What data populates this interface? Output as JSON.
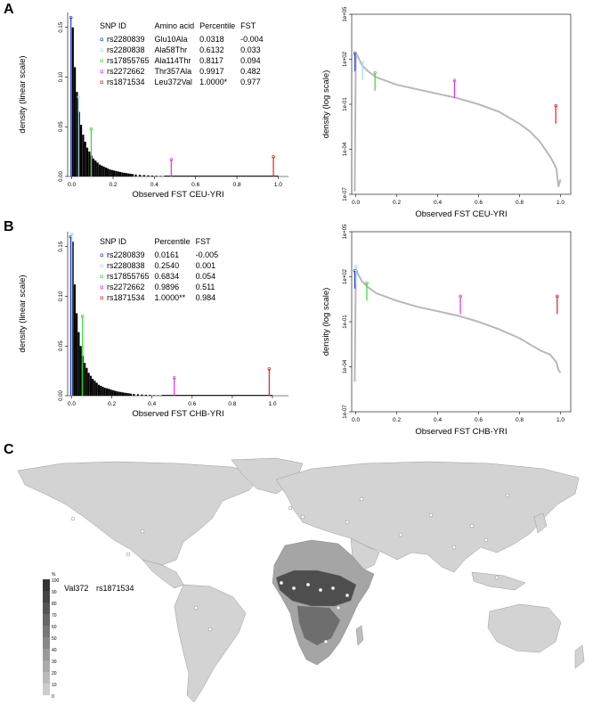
{
  "panels": {
    "a": "A",
    "b": "B",
    "c": "C"
  },
  "colors": {
    "rs2280839": "#1f3fd0",
    "rs2280838": "#a8d8f0",
    "rs17855765": "#33dd33",
    "rs2272662": "#dd33dd",
    "rs1871534": "#dd2222",
    "curve": "#b8b8b8",
    "histogram": "#000000",
    "land": "#d3d3d3"
  },
  "legend_a": {
    "headers": [
      "SNP ID",
      "Amino acid",
      "Percentile",
      "FST"
    ],
    "rows": [
      {
        "snp": "rs2280839",
        "aa": "Glu10Ala",
        "pct": "0.0318",
        "fst": "-0.004"
      },
      {
        "snp": "rs2280838",
        "aa": "Ala58Thr",
        "pct": "0.6132",
        "fst": "0.033"
      },
      {
        "snp": "rs17855765",
        "aa": "Ala114Thr",
        "pct": "0.8117",
        "fst": "0.094"
      },
      {
        "snp": "rs2272662",
        "aa": "Thr357Ala",
        "pct": "0.9917",
        "fst": "0.482"
      },
      {
        "snp": "rs1871534",
        "aa": "Leu372Val",
        "pct": "1.0000*",
        "fst": "0.977"
      }
    ]
  },
  "legend_b": {
    "headers": [
      "SNP ID",
      "Percentile",
      "FST"
    ],
    "rows": [
      {
        "snp": "rs2280839",
        "pct": "0.0161",
        "fst": "-0.005"
      },
      {
        "snp": "rs2280838",
        "pct": "0.2540",
        "fst": "0.001"
      },
      {
        "snp": "rs17855765",
        "pct": "0.6834",
        "fst": "0.054"
      },
      {
        "snp": "rs2272662",
        "pct": "0.9896",
        "fst": "0.511"
      },
      {
        "snp": "rs1871534",
        "pct": "1.0000**",
        "fst": "0.984"
      }
    ]
  },
  "chart_data": [
    {
      "id": "A-linear",
      "type": "bar",
      "xlabel": "Observed FST CEU-YRI",
      "ylabel": "density (linear scale)",
      "xticks": [
        "0.0",
        "0.2",
        "0.4",
        "0.6",
        "0.8",
        "1.0"
      ],
      "yticks": [
        "0.00",
        "0.05",
        "0.10",
        "0.15"
      ],
      "xlim": [
        -0.02,
        1.05
      ],
      "ylim": [
        0,
        0.165
      ],
      "hist_x": [
        0.005,
        0.015,
        0.025,
        0.035,
        0.045,
        0.055,
        0.065,
        0.075,
        0.085,
        0.095,
        0.105,
        0.115,
        0.125,
        0.135,
        0.145,
        0.155,
        0.165,
        0.175,
        0.185,
        0.195,
        0.205,
        0.215,
        0.225,
        0.235,
        0.245,
        0.255,
        0.265,
        0.275,
        0.285,
        0.295,
        0.31,
        0.33,
        0.35,
        0.37,
        0.39,
        0.41,
        0.43,
        0.45
      ],
      "hist_y": [
        0.15,
        0.11,
        0.085,
        0.065,
        0.052,
        0.042,
        0.035,
        0.029,
        0.025,
        0.021,
        0.018,
        0.016,
        0.014,
        0.012,
        0.011,
        0.01,
        0.009,
        0.008,
        0.007,
        0.0065,
        0.006,
        0.0055,
        0.005,
        0.0045,
        0.004,
        0.0037,
        0.0034,
        0.003,
        0.0027,
        0.0024,
        0.002,
        0.0017,
        0.0014,
        0.0011,
        0.0009,
        0.0007,
        0.0005,
        0.0004
      ],
      "snp_markers": [
        {
          "snp": "rs2280839",
          "x": -0.004,
          "y": 0.16
        },
        {
          "snp": "rs2280838",
          "x": 0.033,
          "y": 0.08
        },
        {
          "snp": "rs17855765",
          "x": 0.094,
          "y": 0.048
        },
        {
          "snp": "rs2272662",
          "x": 0.482,
          "y": 0.017
        },
        {
          "snp": "rs1871534",
          "x": 0.977,
          "y": 0.02
        }
      ]
    },
    {
      "id": "A-log",
      "type": "line",
      "xlabel": "Observed FST CEU-YRI",
      "ylabel": "density (log scale)",
      "xticks": [
        "0.0",
        "0.2",
        "0.4",
        "0.6",
        "0.8",
        "1.0"
      ],
      "yticks": [
        "1e-07",
        "1e-04",
        "1e-01",
        "1e+02",
        "1e+05"
      ],
      "xlim": [
        -0.02,
        1.05
      ],
      "ylog_range": [
        -7,
        5
      ],
      "curve_x": [
        -0.005,
        0.0,
        0.005,
        0.01,
        0.03,
        0.06,
        0.1,
        0.2,
        0.3,
        0.4,
        0.5,
        0.6,
        0.7,
        0.8,
        0.85,
        0.9,
        0.92,
        0.95,
        0.97,
        0.98,
        0.99,
        1.0
      ],
      "curve_logy": [
        -6.8,
        2.0,
        2.3,
        2.2,
        1.6,
        1.2,
        0.8,
        0.3,
        0.0,
        -0.3,
        -0.6,
        -1.0,
        -1.5,
        -2.3,
        -2.8,
        -3.5,
        -3.9,
        -4.5,
        -5.0,
        -5.3,
        -6.5,
        -6.0
      ],
      "snp_markers": [
        {
          "snp": "rs2280839",
          "x": -0.004,
          "logy": 2.4
        },
        {
          "snp": "rs2280838",
          "x": 0.033,
          "logy": 1.8
        },
        {
          "snp": "rs17855765",
          "x": 0.094,
          "logy": 1.1
        },
        {
          "snp": "rs2272662",
          "x": 0.482,
          "logy": 0.6
        },
        {
          "snp": "rs1871534",
          "x": 0.977,
          "logy": -1.1
        }
      ]
    },
    {
      "id": "B-linear",
      "type": "bar",
      "xlabel": "Observed FST CHB-YRI",
      "ylabel": "density (linear scale)",
      "xticks": [
        "0.0",
        "0.2",
        "0.4",
        "0.6",
        "0.8",
        "1.0"
      ],
      "yticks": [
        "0.00",
        "0.05",
        "0.10",
        "0.15"
      ],
      "xlim": [
        -0.02,
        1.08
      ],
      "ylim": [
        0,
        0.165
      ],
      "hist_x": [
        0.005,
        0.015,
        0.025,
        0.035,
        0.045,
        0.055,
        0.065,
        0.075,
        0.085,
        0.095,
        0.105,
        0.115,
        0.125,
        0.135,
        0.145,
        0.155,
        0.165,
        0.175,
        0.185,
        0.195,
        0.205,
        0.215,
        0.225,
        0.235,
        0.245,
        0.255,
        0.265,
        0.275,
        0.285,
        0.295,
        0.31,
        0.33,
        0.35,
        0.37,
        0.39,
        0.41,
        0.43,
        0.45
      ],
      "hist_y": [
        0.155,
        0.112,
        0.083,
        0.064,
        0.05,
        0.04,
        0.033,
        0.028,
        0.023,
        0.02,
        0.017,
        0.015,
        0.013,
        0.011,
        0.01,
        0.009,
        0.008,
        0.0075,
        0.007,
        0.0062,
        0.0056,
        0.005,
        0.0045,
        0.004,
        0.0037,
        0.0033,
        0.003,
        0.0027,
        0.0024,
        0.0021,
        0.0018,
        0.0015,
        0.0012,
        0.001,
        0.0008,
        0.0006,
        0.0005,
        0.0004
      ],
      "snp_markers": [
        {
          "snp": "rs2280839",
          "x": -0.005,
          "y": 0.16
        },
        {
          "snp": "rs2280838",
          "x": 0.001,
          "y": 0.163
        },
        {
          "snp": "rs17855765",
          "x": 0.054,
          "y": 0.08
        },
        {
          "snp": "rs2272662",
          "x": 0.511,
          "y": 0.018
        },
        {
          "snp": "rs1871534",
          "x": 0.984,
          "y": 0.027
        }
      ]
    },
    {
      "id": "B-log",
      "type": "line",
      "xlabel": "Observed FST CHB-YRI",
      "ylabel": "density (log scale)",
      "xticks": [
        "0.0",
        "0.2",
        "0.4",
        "0.6",
        "0.8",
        "1.0"
      ],
      "yticks": [
        "1e-07",
        "1e-04",
        "1e-01",
        "1e+02",
        "1e+05"
      ],
      "xlim": [
        -0.02,
        1.05
      ],
      "ylog_range": [
        -7,
        5
      ],
      "curve_x": [
        -0.005,
        0.0,
        0.005,
        0.01,
        0.03,
        0.06,
        0.1,
        0.2,
        0.3,
        0.4,
        0.5,
        0.6,
        0.7,
        0.8,
        0.85,
        0.9,
        0.95,
        0.98,
        0.99,
        1.0
      ],
      "curve_logy": [
        -5.0,
        2.1,
        2.4,
        2.2,
        1.7,
        1.3,
        0.9,
        0.4,
        0.0,
        -0.3,
        -0.6,
        -1.0,
        -1.5,
        -2.1,
        -2.5,
        -2.9,
        -3.2,
        -3.7,
        -4.2,
        -4.4
      ],
      "snp_markers": [
        {
          "snp": "rs2280839",
          "x": -0.005,
          "logy": 2.4
        },
        {
          "snp": "rs2280838",
          "x": 0.001,
          "logy": 2.7
        },
        {
          "snp": "rs17855765",
          "x": 0.054,
          "logy": 1.6
        },
        {
          "snp": "rs2272662",
          "x": 0.511,
          "logy": 0.7
        },
        {
          "snp": "rs1871534",
          "x": 0.984,
          "logy": 0.7
        }
      ]
    }
  ],
  "map": {
    "legend_unit": "%",
    "legend_ticks": [
      "100",
      "90",
      "80",
      "70",
      "60",
      "50",
      "40",
      "30",
      "20",
      "10",
      "0"
    ],
    "variant_label": "Val372",
    "snp_label": "rs1871534"
  }
}
